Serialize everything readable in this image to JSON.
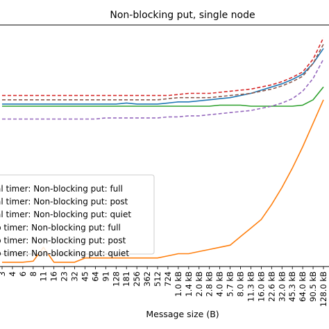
{
  "chart_data": {
    "type": "line",
    "title": "Non-blocking put, single node",
    "xlabel": "Message size (B)",
    "ylabel": "",
    "x": [
      "3",
      "4",
      "6",
      "8",
      "11",
      "16",
      "23",
      "32",
      "45",
      "64",
      "91",
      "128",
      "181",
      "256",
      "362",
      "512",
      "724",
      "1.0 kB",
      "1.4 kB",
      "2.0 kB",
      "2.8 kB",
      "4.0 kB",
      "5.7 kB",
      "8.0 kB",
      "11.3 kB",
      "16.0 kB",
      "22.6 kB",
      "32.0 kB",
      "45.3 kB",
      "64.0 kB",
      "90.5 kB",
      "128.0 kB"
    ],
    "ylim": [
      0,
      100
    ],
    "grid": false,
    "legend_position": "lower-left",
    "series": [
      {
        "name": "…al timer: Non-blocking put: full",
        "color": "#1f77b4",
        "style": "solid",
        "values": [
          76,
          76,
          76,
          76,
          76,
          76,
          76,
          76,
          76,
          76,
          76,
          76,
          76.5,
          76,
          76,
          76,
          76.5,
          77,
          77,
          77.5,
          78,
          78.5,
          79,
          80,
          81,
          82.5,
          84,
          85.5,
          87.5,
          90,
          95,
          102
        ]
      },
      {
        "name": "…al timer: Non-blocking put: post",
        "color": "#ff7f0e",
        "style": "solid",
        "values": [
          2,
          2,
          2,
          2.5,
          9,
          2,
          2,
          2,
          4,
          4,
          4,
          4,
          4,
          4,
          4,
          4,
          5,
          6,
          6,
          7,
          8,
          9,
          10,
          14,
          18,
          22,
          29,
          37,
          46,
          56,
          67,
          78
        ]
      },
      {
        "name": "…al timer: Non-blocking put: quiet",
        "color": "#2ca02c",
        "style": "solid",
        "values": [
          75,
          75,
          75,
          75,
          75,
          75,
          75,
          75,
          75,
          75,
          75,
          75,
          75,
          75,
          75,
          75,
          75,
          75,
          75,
          75,
          75,
          75.5,
          75.5,
          75.5,
          75,
          75,
          75,
          75,
          75,
          75.5,
          78,
          84
        ]
      },
      {
        "name": "…p timer: Non-blocking put: full",
        "color": "#d62728",
        "style": "dashed",
        "values": [
          80,
          80,
          80,
          80,
          80,
          80,
          80,
          80,
          80,
          80,
          80,
          80,
          80,
          80,
          80,
          80,
          80,
          80.5,
          81,
          81,
          81,
          81.5,
          82,
          82.5,
          83,
          84,
          85,
          86.5,
          88.5,
          91,
          97,
          107
        ]
      },
      {
        "name": "…p timer: Non-blocking put: post",
        "color": "#8c564b",
        "style": "dashed",
        "values": [
          78,
          78,
          78,
          78,
          78,
          78,
          78,
          78,
          78,
          78,
          78,
          78,
          78,
          78,
          78,
          78,
          78.5,
          79,
          79,
          79,
          79,
          79.5,
          80,
          80.5,
          81,
          82,
          83,
          84.5,
          86.5,
          89,
          95,
          104
        ]
      },
      {
        "name": "…p timer: Non-blocking put: quiet",
        "color": "#9467bd",
        "style": "dashed",
        "values": [
          69,
          69,
          69,
          69,
          69,
          69,
          69,
          69,
          69,
          69,
          69.5,
          69.5,
          69.5,
          69.5,
          69.5,
          69.5,
          70,
          70,
          70.5,
          70.5,
          71,
          71.5,
          72,
          72.5,
          73,
          74,
          75,
          76.5,
          78.5,
          82,
          88,
          97
        ]
      }
    ],
    "legend_labels": [
      "al timer: Non-blocking put: full",
      "al timer: Non-blocking put: post",
      "al timer: Non-blocking put: quiet",
      "p timer: Non-blocking put: full",
      "p timer: Non-blocking put: post",
      "p timer: Non-blocking put: quiet"
    ]
  }
}
